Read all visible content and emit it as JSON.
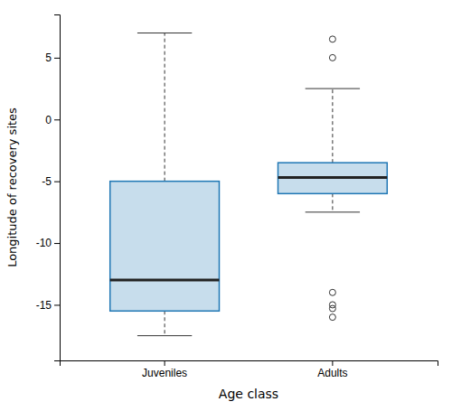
{
  "chart_data": {
    "type": "box",
    "xlabel": "Age class",
    "ylabel": "Longitude of recovery sites",
    "categories": [
      "Juveniles",
      "Adults"
    ],
    "boxes": [
      {
        "q1": -15.5,
        "median": -13.0,
        "q3": -5.0,
        "whisker_min": -17.5,
        "whisker_max": 7.0,
        "outliers": []
      },
      {
        "q1": -6.0,
        "median": -4.7,
        "q3": -3.5,
        "whisker_min": -7.5,
        "whisker_max": 2.5,
        "outliers": [
          6.5,
          5.0,
          -14.0,
          -15.0,
          -15.3,
          -16.0
        ]
      }
    ],
    "ylim": [
      -19.5,
      8.5
    ],
    "yticks": [
      -15,
      -10,
      -5,
      0,
      5
    ]
  }
}
